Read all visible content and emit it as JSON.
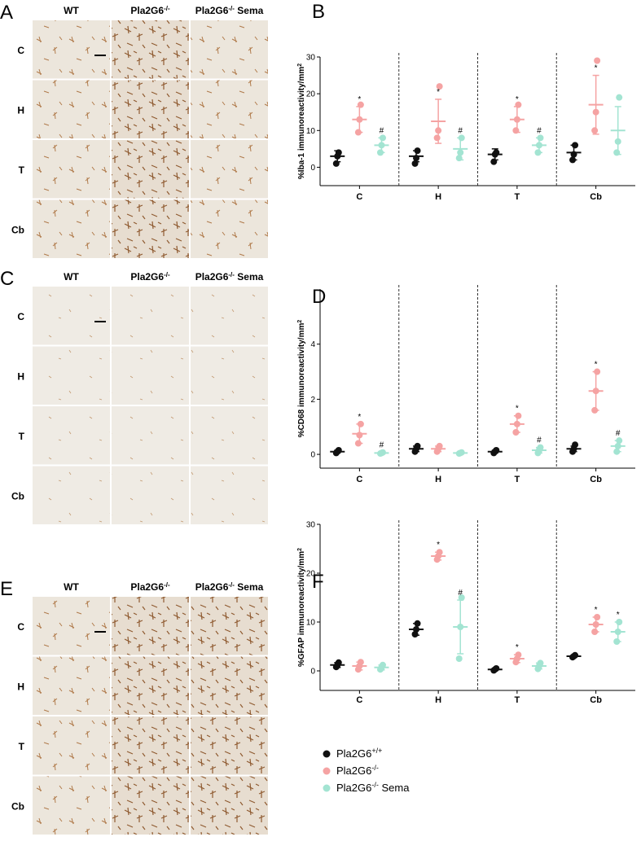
{
  "micrographs": [
    {
      "label": "A",
      "columns": [
        {
          "text": "WT"
        },
        {
          "base": "Pla2G6",
          "sup": "-/-"
        },
        {
          "base": "Pla2G6",
          "sup": "-/-",
          "after": " Sema"
        }
      ],
      "rows": [
        "C",
        "H",
        "T",
        "Cb"
      ]
    },
    {
      "label": "C",
      "columns": [
        {
          "text": "WT"
        },
        {
          "base": "Pla2G6",
          "sup": "-/-"
        },
        {
          "base": "Pla2G6",
          "sup": "-/-",
          "after": " Sema"
        }
      ],
      "rows": [
        "C",
        "H",
        "T",
        "Cb"
      ]
    },
    {
      "label": "E",
      "columns": [
        {
          "text": "WT"
        },
        {
          "base": "Pla2G6",
          "sup": "-/-"
        },
        {
          "base": "Pla2G6",
          "sup": "-/-",
          "after": " Sema"
        }
      ],
      "rows": [
        "C",
        "H",
        "T",
        "Cb"
      ]
    }
  ],
  "chart_data": [
    {
      "type": "dotplot",
      "panel": "B",
      "ylabel": {
        "base": "%Iba-1 immunoreactivity/mm",
        "sup": "2"
      },
      "categories": [
        "C",
        "H",
        "T",
        "Cb"
      ],
      "ylim": [
        -5,
        30
      ],
      "yticks": [
        0,
        10,
        20,
        30
      ],
      "series": [
        {
          "color": "#111111",
          "values": [
            3,
            3,
            3.5,
            4
          ],
          "errors": [
            1.5,
            1.5,
            1.5,
            2
          ],
          "points": [
            [
              1,
              3,
              4
            ],
            [
              1,
              2.5,
              4.5
            ],
            [
              1.5,
              3.5,
              4
            ],
            [
              2,
              3.5,
              6
            ]
          ],
          "annotations": [
            null,
            null,
            null,
            null
          ]
        },
        {
          "color": "#f5a3a3",
          "values": [
            13,
            12.5,
            13,
            17
          ],
          "errors": [
            3.5,
            6,
            3.5,
            8
          ],
          "points": [
            [
              9.5,
              13,
              17
            ],
            [
              8,
              10,
              22
            ],
            [
              10,
              13,
              17
            ],
            [
              10,
              15,
              29
            ]
          ],
          "annotations": [
            "*",
            "*",
            "*",
            "*"
          ]
        },
        {
          "color": "#a3e4d2",
          "values": [
            6,
            5,
            6,
            10
          ],
          "errors": [
            2,
            3,
            2,
            6.5
          ],
          "points": [
            [
              4,
              6,
              8
            ],
            [
              2.5,
              4,
              8
            ],
            [
              4,
              6,
              8
            ],
            [
              4,
              7,
              19
            ]
          ],
          "annotations": [
            "#",
            "#",
            "#",
            null
          ]
        }
      ]
    },
    {
      "type": "dotplot",
      "panel": "D",
      "ylabel": {
        "base": "%CD68 immunoreactivity/mm",
        "sup": "2"
      },
      "categories": [
        "C",
        "H",
        "T",
        "Cb"
      ],
      "ylim": [
        -0.5,
        6
      ],
      "yticks": [
        0,
        2,
        4
      ],
      "series": [
        {
          "color": "#111111",
          "values": [
            0.1,
            0.2,
            0.1,
            0.2
          ],
          "errors": [
            0.05,
            0.1,
            0.05,
            0.1
          ],
          "points": [
            [
              0.05,
              0.1,
              0.15
            ],
            [
              0.1,
              0.2,
              0.3
            ],
            [
              0.05,
              0.1,
              0.15
            ],
            [
              0.1,
              0.2,
              0.35
            ]
          ],
          "annotations": [
            null,
            null,
            null,
            null
          ]
        },
        {
          "color": "#f5a3a3",
          "values": [
            0.75,
            0.2,
            1.1,
            2.3
          ],
          "errors": [
            0.35,
            0.1,
            0.3,
            0.7
          ],
          "points": [
            [
              0.4,
              0.7,
              1.1
            ],
            [
              0.1,
              0.2,
              0.3
            ],
            [
              0.8,
              1.1,
              1.4
            ],
            [
              1.6,
              2.3,
              3
            ]
          ],
          "annotations": [
            "*",
            null,
            "*",
            "*"
          ]
        },
        {
          "color": "#a3e4d2",
          "values": [
            0.05,
            0.05,
            0.15,
            0.3
          ],
          "errors": [
            0.02,
            0.02,
            0.1,
            0.2
          ],
          "points": [
            [
              0.03,
              0.05,
              0.07
            ],
            [
              0.03,
              0.05,
              0.07
            ],
            [
              0.05,
              0.15,
              0.25
            ],
            [
              0.1,
              0.3,
              0.5
            ]
          ],
          "annotations": [
            "#",
            null,
            "#",
            "#"
          ]
        }
      ]
    },
    {
      "type": "dotplot",
      "panel": "F",
      "ylabel": {
        "base": "%GFAP immunoreactivity/mm",
        "sup": "2"
      },
      "categories": [
        "C",
        "H",
        "T",
        "Cb"
      ],
      "ylim": [
        -4,
        30
      ],
      "yticks": [
        0,
        10,
        20,
        30
      ],
      "series": [
        {
          "name": {
            "base": "Pla2G6",
            "sup": "+/+"
          },
          "color": "#111111",
          "values": [
            1.2,
            8.5,
            0.3,
            3
          ],
          "errors": [
            0.5,
            1.2,
            0.2,
            0.2
          ],
          "points": [
            [
              0.8,
              1.2,
              1.7
            ],
            [
              7.5,
              8.5,
              9.7
            ],
            [
              0.1,
              0.3,
              0.5
            ],
            [
              2.8,
              3,
              3.2
            ]
          ],
          "annotations": [
            null,
            null,
            null,
            null
          ]
        },
        {
          "name": {
            "base": "Pla2G6",
            "sup": "-/-"
          },
          "color": "#f5a3a3",
          "values": [
            1,
            23.5,
            2.5,
            9.5
          ],
          "errors": [
            0.8,
            0.8,
            0.8,
            1.5
          ],
          "points": [
            [
              0.3,
              1,
              1.8
            ],
            [
              22.8,
              23.5,
              24.3
            ],
            [
              1.8,
              2.5,
              3.3
            ],
            [
              8,
              9.5,
              11
            ]
          ],
          "annotations": [
            null,
            "*",
            "*",
            "*"
          ]
        },
        {
          "name": {
            "base": "Pla2G6",
            "sup": "-/-",
            "after": " Sema"
          },
          "color": "#a3e4d2",
          "values": [
            0.7,
            9,
            1,
            8
          ],
          "errors": [
            0.5,
            5.5,
            0.6,
            2
          ],
          "points": [
            [
              0.3,
              0.7,
              1.2
            ],
            [
              2.5,
              9,
              15
            ],
            [
              0.4,
              1,
              1.6
            ],
            [
              6,
              8,
              10
            ]
          ],
          "annotations": [
            null,
            "#",
            null,
            "*"
          ]
        }
      ]
    }
  ]
}
